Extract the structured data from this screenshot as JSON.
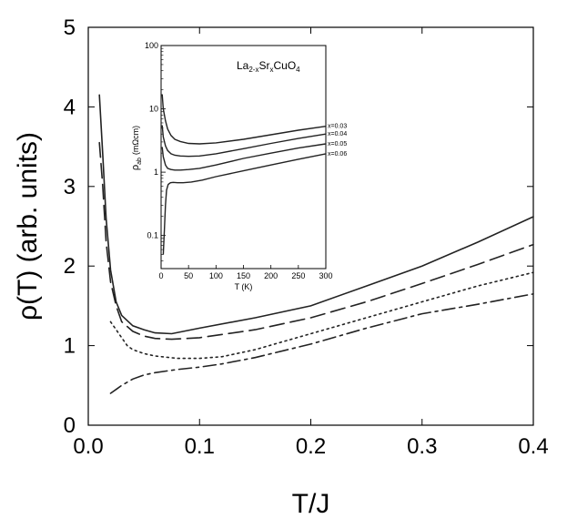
{
  "chart_data": [
    {
      "id": "main",
      "type": "line",
      "title": "",
      "xlabel": "T/J",
      "ylabel": "ρ(T) (arb. units)",
      "xlim": [
        0.0,
        0.4
      ],
      "ylim": [
        0,
        5
      ],
      "xticks": [
        0.0,
        0.1,
        0.2,
        0.3,
        0.4
      ],
      "xtick_labels": [
        "0.0",
        "0.1",
        "0.2",
        "0.3",
        "0.4"
      ],
      "yticks": [
        0,
        1,
        2,
        3,
        4,
        5
      ],
      "ytick_labels": [
        "0",
        "1",
        "2",
        "3",
        "4",
        "5"
      ],
      "grid": false,
      "series": [
        {
          "name": "solid",
          "style": "solid",
          "x": [
            0.01,
            0.013,
            0.016,
            0.02,
            0.025,
            0.03,
            0.04,
            0.05,
            0.06,
            0.075,
            0.1,
            0.15,
            0.2,
            0.25,
            0.3,
            0.35,
            0.4
          ],
          "values": [
            4.15,
            3.4,
            2.6,
            1.95,
            1.55,
            1.38,
            1.25,
            1.2,
            1.16,
            1.15,
            1.22,
            1.35,
            1.5,
            1.75,
            2.0,
            2.3,
            2.62
          ]
        },
        {
          "name": "long dashed",
          "style": "long-dash",
          "x": [
            0.01,
            0.013,
            0.016,
            0.02,
            0.025,
            0.03,
            0.04,
            0.05,
            0.06,
            0.075,
            0.1,
            0.15,
            0.2,
            0.25,
            0.3,
            0.35,
            0.4
          ],
          "values": [
            3.55,
            3.0,
            2.3,
            1.8,
            1.5,
            1.3,
            1.18,
            1.12,
            1.09,
            1.08,
            1.1,
            1.2,
            1.35,
            1.55,
            1.78,
            2.02,
            2.27
          ]
        },
        {
          "name": "dotted",
          "style": "dotted",
          "x": [
            0.02,
            0.025,
            0.03,
            0.035,
            0.04,
            0.05,
            0.06,
            0.08,
            0.1,
            0.12,
            0.15,
            0.2,
            0.25,
            0.3,
            0.35,
            0.4
          ],
          "values": [
            1.3,
            1.2,
            1.1,
            1.0,
            0.95,
            0.9,
            0.87,
            0.84,
            0.84,
            0.86,
            0.95,
            1.15,
            1.35,
            1.55,
            1.75,
            1.92
          ]
        },
        {
          "name": "dash-dot",
          "style": "dash-dot",
          "x": [
            0.02,
            0.025,
            0.03,
            0.035,
            0.04,
            0.05,
            0.06,
            0.08,
            0.1,
            0.12,
            0.15,
            0.2,
            0.25,
            0.3,
            0.35,
            0.4
          ],
          "values": [
            0.4,
            0.45,
            0.5,
            0.54,
            0.58,
            0.63,
            0.66,
            0.7,
            0.73,
            0.77,
            0.85,
            1.02,
            1.22,
            1.4,
            1.52,
            1.65
          ]
        }
      ]
    },
    {
      "id": "inset",
      "type": "line",
      "title": "La2-xSrxCuO4",
      "title_parts": [
        "La",
        "2-x",
        "Sr",
        "x",
        "CuO",
        "4"
      ],
      "xlabel": "T (K)",
      "ylabel_parts": [
        "ρ",
        "ab",
        "(mΩcm)"
      ],
      "xlim": [
        0,
        300
      ],
      "ylim": [
        0.03,
        100
      ],
      "yscale": "log",
      "xticks": [
        0,
        50,
        100,
        150,
        200,
        250,
        300
      ],
      "xtick_labels": [
        "0",
        "50",
        "100",
        "150",
        "200",
        "250",
        "300"
      ],
      "yticks": [
        0.1,
        1,
        10,
        100
      ],
      "ytick_labels": [
        "0.1",
        "1",
        "10",
        "100"
      ],
      "series": [
        {
          "name": "x=0.03",
          "x": [
            2,
            4,
            8,
            12,
            18,
            25,
            35,
            50,
            70,
            100,
            150,
            200,
            250,
            300
          ],
          "values": [
            17,
            10,
            6.5,
            4.8,
            3.8,
            3.3,
            3.05,
            2.85,
            2.8,
            2.9,
            3.3,
            3.9,
            4.6,
            5.3
          ]
        },
        {
          "name": "x=0.04",
          "x": [
            2,
            4,
            8,
            12,
            18,
            25,
            35,
            50,
            70,
            100,
            150,
            200,
            250,
            300
          ],
          "values": [
            5.5,
            3.6,
            2.6,
            2.2,
            1.95,
            1.85,
            1.8,
            1.78,
            1.8,
            1.95,
            2.35,
            2.85,
            3.4,
            4.0
          ]
        },
        {
          "name": "x=0.05",
          "x": [
            2,
            4,
            8,
            12,
            18,
            25,
            35,
            50,
            70,
            100,
            150,
            200,
            250,
            300
          ],
          "values": [
            2.5,
            1.75,
            1.3,
            1.15,
            1.1,
            1.08,
            1.08,
            1.1,
            1.15,
            1.3,
            1.65,
            2.0,
            2.4,
            2.8
          ]
        },
        {
          "name": "x=0.06",
          "x": [
            4,
            6,
            8,
            10,
            13,
            17,
            22,
            30,
            40,
            55,
            75,
            100,
            150,
            200,
            250,
            300
          ],
          "values": [
            0.05,
            0.12,
            0.3,
            0.52,
            0.64,
            0.68,
            0.69,
            0.68,
            0.68,
            0.7,
            0.75,
            0.85,
            1.05,
            1.3,
            1.6,
            1.95
          ]
        }
      ]
    }
  ]
}
